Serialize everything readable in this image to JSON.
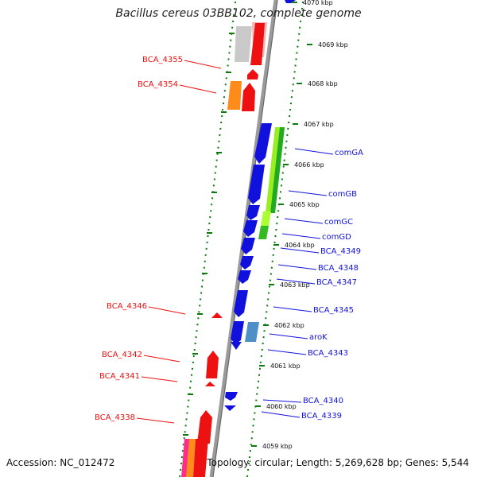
{
  "title": "Bacillus cereus 03BB102, complete genome",
  "footer": {
    "accession": "Accession: NC_012472",
    "topology": "Topology: circular; Length: 5,269,628 bp; Genes: 5,544"
  },
  "colors": {
    "left_strand": "#ee1111",
    "right_strand": "#1111dd",
    "backbone": "#9a9a9a",
    "ruler": "#0a7a0a"
  },
  "kbp_labels": [
    "4070 kbp",
    "4069 kbp",
    "4068 kbp",
    "4067 kbp",
    "4066 kbp",
    "4065 kbp",
    "4064 kbp",
    "4063 kbp",
    "4062 kbp",
    "4061 kbp",
    "4060 kbp",
    "4059 kbp"
  ],
  "left_labels": [
    "BCA_4355",
    "BCA_4354",
    "BCA_4346",
    "BCA_4342",
    "BCA_4341",
    "BCA_4338"
  ],
  "right_labels": [
    "comGA",
    "comGB",
    "comGC",
    "comGD",
    "BCA_4349",
    "BCA_4348",
    "BCA_4347",
    "BCA_4345",
    "aroK",
    "BCA_4343",
    "BCA_4340",
    "BCA_4339"
  ]
}
